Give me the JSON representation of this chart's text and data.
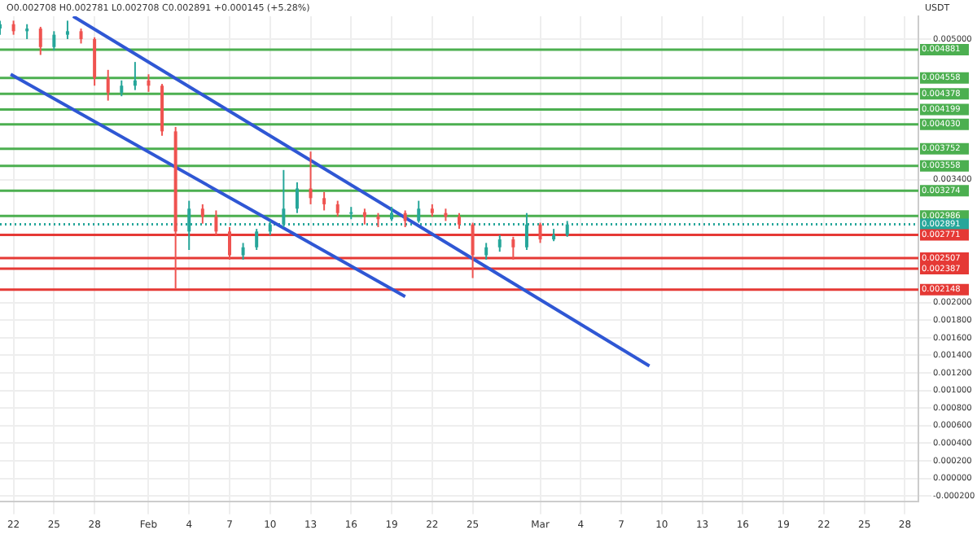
{
  "chart_data": {
    "type": "candlestick",
    "title": "O0.002708 H0.002781 L0.002708 C0.002891 +0.000145 (+5.28%)",
    "ylabel": "USDT",
    "x": [
      "--01-21",
      "--01-22",
      "--01-23",
      "--01-24",
      "--01-25",
      "--01-26",
      "--01-27",
      "--01-28",
      "--01-29",
      "--01-30",
      "--01-31",
      "--02-01",
      "--02-02",
      "--02-03",
      "--02-04",
      "--02-05",
      "--02-06",
      "--02-07",
      "--02-08",
      "--02-09",
      "--02-10",
      "--02-11",
      "--02-12",
      "--02-13",
      "--02-14",
      "--02-15",
      "--02-16",
      "--02-17",
      "--02-18",
      "--02-19",
      "--02-20",
      "--02-21",
      "--02-22",
      "--02-23",
      "--02-24",
      "--02-25",
      "--02-26",
      "--02-27",
      "--02-28",
      "--02-29",
      "--03-01",
      "--03-02",
      "--03-03"
    ],
    "ohlc": [
      [
        0.00512,
        0.00521,
        0.00505,
        0.00517
      ],
      [
        0.00517,
        0.00521,
        0.00505,
        0.00509
      ],
      [
        0.00509,
        0.00517,
        0.005,
        0.00512
      ],
      [
        0.00512,
        0.00514,
        0.00482,
        0.00491
      ],
      [
        0.00491,
        0.00509,
        0.00487,
        0.00505
      ],
      [
        0.00505,
        0.00521,
        0.005,
        0.00509
      ],
      [
        0.00509,
        0.00512,
        0.00495,
        0.005
      ],
      [
        0.005,
        0.00502,
        0.00447,
        0.00456
      ],
      [
        0.00456,
        0.00465,
        0.0043,
        0.00439
      ],
      [
        0.00439,
        0.00453,
        0.00435,
        0.00447
      ],
      [
        0.00447,
        0.00474,
        0.00442,
        0.00453
      ],
      [
        0.00453,
        0.0046,
        0.0044,
        0.00447
      ],
      [
        0.00447,
        0.00449,
        0.0039,
        0.00395
      ],
      [
        0.00395,
        0.004,
        0.00216,
        0.00281
      ],
      [
        0.00281,
        0.00316,
        0.0026,
        0.00307
      ],
      [
        0.00307,
        0.00312,
        0.0029,
        0.00298
      ],
      [
        0.00298,
        0.00305,
        0.00277,
        0.00281
      ],
      [
        0.00281,
        0.00286,
        0.00249,
        0.00254
      ],
      [
        0.00254,
        0.00268,
        0.00249,
        0.00263
      ],
      [
        0.00263,
        0.00284,
        0.0026,
        0.00281
      ],
      [
        0.00281,
        0.00293,
        0.00277,
        0.00289
      ],
      [
        0.00289,
        0.00351,
        0.00286,
        0.00307
      ],
      [
        0.00307,
        0.00337,
        0.00302,
        0.0033
      ],
      [
        0.0033,
        0.00372,
        0.00312,
        0.00319
      ],
      [
        0.00319,
        0.00326,
        0.00305,
        0.00312
      ],
      [
        0.00312,
        0.00316,
        0.00298,
        0.00302
      ],
      [
        0.00302,
        0.00309,
        0.00295,
        0.00303
      ],
      [
        0.00303,
        0.00307,
        0.00289,
        0.00298
      ],
      [
        0.00298,
        0.00302,
        0.00286,
        0.00295
      ],
      [
        0.00295,
        0.00309,
        0.00293,
        0.00302
      ],
      [
        0.00302,
        0.00305,
        0.00286,
        0.00293
      ],
      [
        0.00293,
        0.00316,
        0.00291,
        0.00307
      ],
      [
        0.00307,
        0.00312,
        0.00298,
        0.00302
      ],
      [
        0.00302,
        0.00307,
        0.00293,
        0.00298
      ],
      [
        0.00298,
        0.00302,
        0.00284,
        0.00289
      ],
      [
        0.00289,
        0.00291,
        0.00228,
        0.00254
      ],
      [
        0.00254,
        0.00268,
        0.00249,
        0.00263
      ],
      [
        0.00263,
        0.00277,
        0.00258,
        0.00272
      ],
      [
        0.00272,
        0.00275,
        0.00249,
        0.00263
      ],
      [
        0.00263,
        0.00302,
        0.0026,
        0.00289
      ],
      [
        0.00289,
        0.00291,
        0.00268,
        0.00272
      ],
      [
        0.00272,
        0.00284,
        0.0027,
        0.00277
      ],
      [
        0.00277,
        0.00293,
        0.00275,
        0.00289
      ]
    ],
    "colors": [
      "#26a69a",
      "#ef5350",
      "#26a69a",
      "#ef5350",
      "#26a69a",
      "#26a69a",
      "#ef5350",
      "#ef5350",
      "#ef5350",
      "#26a69a",
      "#26a69a",
      "#ef5350",
      "#ef5350",
      "#ef5350",
      "#26a69a",
      "#ef5350",
      "#ef5350",
      "#ef5350",
      "#26a69a",
      "#26a69a",
      "#26a69a",
      "#26a69a",
      "#26a69a",
      "#ef5350",
      "#ef5350",
      "#ef5350",
      "#26a69a",
      "#ef5350",
      "#ef5350",
      "#26a69a",
      "#ef5350",
      "#26a69a",
      "#ef5350",
      "#ef5350",
      "#ef5350",
      "#ef5350",
      "#26a69a",
      "#26a69a",
      "#ef5350",
      "#26a69a",
      "#ef5350",
      "#26a69a",
      "#26a69a"
    ],
    "series": [
      {
        "type": "line",
        "color": "#2f57d4",
        "x": [
          "--01-26T10:00",
          "--03-09T02:00"
        ],
        "values": [
          0.00526,
          0.00128
        ]
      },
      {
        "type": "line",
        "color": "#2f57d4",
        "x": [
          "--01-21T19:00",
          "--02-20"
        ],
        "values": [
          0.0046,
          0.00207
        ]
      }
    ],
    "xlim": [
      "--01-21",
      "--03-29"
    ],
    "xticks": [
      {
        "value": "--01-22",
        "label": "22"
      },
      {
        "value": "--01-25",
        "label": "25"
      },
      {
        "value": "--01-28",
        "label": "28"
      },
      {
        "value": "--02-01",
        "label": "Feb"
      },
      {
        "value": "--02-04",
        "label": "4"
      },
      {
        "value": "--02-07",
        "label": "7"
      },
      {
        "value": "--02-10",
        "label": "10"
      },
      {
        "value": "--02-13",
        "label": "13"
      },
      {
        "value": "--02-16",
        "label": "16"
      },
      {
        "value": "--02-19",
        "label": "19"
      },
      {
        "value": "--02-22",
        "label": "22"
      },
      {
        "value": "--02-25",
        "label": "25"
      },
      {
        "value": "--03-01",
        "label": "Mar"
      },
      {
        "value": "--03-04",
        "label": "4"
      },
      {
        "value": "--03-07",
        "label": "7"
      },
      {
        "value": "--03-10",
        "label": "10"
      },
      {
        "value": "--03-13",
        "label": "13"
      },
      {
        "value": "--03-16",
        "label": "16"
      },
      {
        "value": "--03-19",
        "label": "19"
      },
      {
        "value": "--03-22",
        "label": "22"
      },
      {
        "value": "--03-25",
        "label": "25"
      },
      {
        "value": "--03-28",
        "label": "28"
      }
    ],
    "ylim": [
      -0.00026,
      0.00526
    ],
    "yticks": [
      {
        "value": 0.005,
        "label": "0.005000"
      },
      {
        "value": 0.0034,
        "label": "0.003400"
      },
      {
        "value": 0.002,
        "label": "0.002000"
      },
      {
        "value": 0.0018,
        "label": "0.001800"
      },
      {
        "value": 0.0016,
        "label": "0.001600"
      },
      {
        "value": 0.0014,
        "label": "0.001400"
      },
      {
        "value": 0.0012,
        "label": "0.001200"
      },
      {
        "value": 0.001,
        "label": "0.001000"
      },
      {
        "value": 0.0008,
        "label": "0.000800"
      },
      {
        "value": 0.0006,
        "label": "0.000600"
      },
      {
        "value": 0.0004,
        "label": "0.000400"
      },
      {
        "value": 0.0002,
        "label": "0.000200"
      },
      {
        "value": 0,
        "label": "0.000000"
      },
      {
        "value": -0.0002,
        "label": "-0.000200"
      }
    ],
    "ref_lines": [
      {
        "axis": "y",
        "value": 0.004881,
        "label": "0.004881",
        "color": "#4caf50"
      },
      {
        "axis": "y",
        "value": 0.004558,
        "label": "0.004558",
        "color": "#4caf50"
      },
      {
        "axis": "y",
        "value": 0.004378,
        "label": "0.004378",
        "color": "#4caf50"
      },
      {
        "axis": "y",
        "value": 0.004199,
        "label": "0.004199",
        "color": "#4caf50"
      },
      {
        "axis": "y",
        "value": 0.00403,
        "label": "0.004030",
        "color": "#4caf50"
      },
      {
        "axis": "y",
        "value": 0.003752,
        "label": "0.003752",
        "color": "#4caf50"
      },
      {
        "axis": "y",
        "value": 0.003558,
        "label": "0.003558",
        "color": "#4caf50"
      },
      {
        "axis": "y",
        "value": 0.003274,
        "label": "0.003274",
        "color": "#4caf50"
      },
      {
        "axis": "y",
        "value": 0.002986,
        "label": "0.002986",
        "color": "#4caf50"
      },
      {
        "axis": "y",
        "value": 0.002891,
        "label": "0.002891",
        "color": "#26a69a",
        "line_style": "dotted"
      },
      {
        "axis": "y",
        "value": 0.002771,
        "label": "0.002771",
        "color": "#e53935"
      },
      {
        "axis": "y",
        "value": 0.002507,
        "label": "0.002507",
        "color": "#e53935"
      },
      {
        "axis": "y",
        "value": 0.002387,
        "label": "0.002387",
        "color": "#e53935"
      },
      {
        "axis": "y",
        "value": 0.002148,
        "label": "0.002148",
        "color": "#e53935"
      }
    ],
    "grid": true,
    "legend": false
  }
}
